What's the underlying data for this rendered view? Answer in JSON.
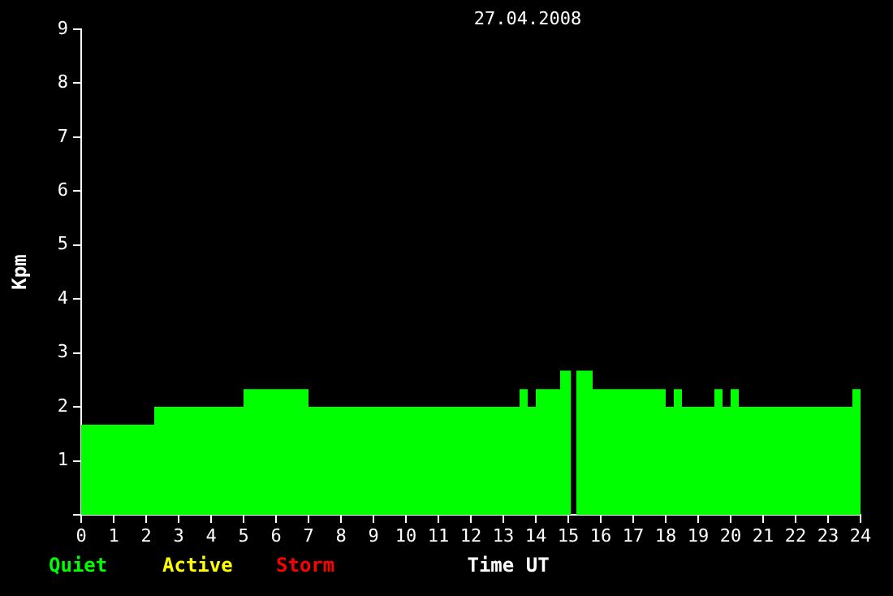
{
  "chart_data": {
    "type": "area",
    "title": "27.04.2008",
    "xlabel": "Time UT",
    "ylabel": "Kpm",
    "annotations": [
      "Quiet",
      "Active",
      "Storm"
    ],
    "x": [
      0,
      2.25,
      2.25,
      5,
      5,
      7,
      7,
      13.5,
      13.5,
      13.75,
      13.75,
      14,
      14,
      14.75,
      14.75,
      15.08,
      15.08,
      15.25,
      15.25,
      15.75,
      15.75,
      18,
      18,
      18.25,
      18.25,
      18.5,
      18.5,
      19.5,
      19.5,
      19.75,
      19.75,
      20,
      20,
      20.25,
      20.25,
      23.75,
      23.75,
      24
    ],
    "series": [
      {
        "color": "#00ff00",
        "values": [
          1.67,
          1.67,
          2,
          2,
          2.33,
          2.33,
          2,
          2,
          2.33,
          2.33,
          2,
          2,
          2.33,
          2.33,
          2.67,
          2.67,
          0,
          0,
          2.67,
          2.67,
          2.33,
          2.33,
          2,
          2,
          2.33,
          2.33,
          2,
          2,
          2.33,
          2.33,
          2,
          2,
          2.33,
          2.33,
          2,
          2,
          2.33,
          2.33
        ]
      }
    ],
    "xlim": [
      0,
      24
    ],
    "xticks": [
      0,
      1,
      2,
      3,
      4,
      5,
      6,
      7,
      8,
      9,
      10,
      11,
      12,
      13,
      14,
      15,
      16,
      17,
      18,
      19,
      20,
      21,
      22,
      23,
      24
    ],
    "ylim": [
      0,
      9
    ],
    "yticks": [
      {
        "value": 0,
        "label": null
      },
      1,
      2,
      3,
      4,
      5,
      6,
      7,
      8,
      9
    ],
    "grid": false,
    "legend": false
  }
}
